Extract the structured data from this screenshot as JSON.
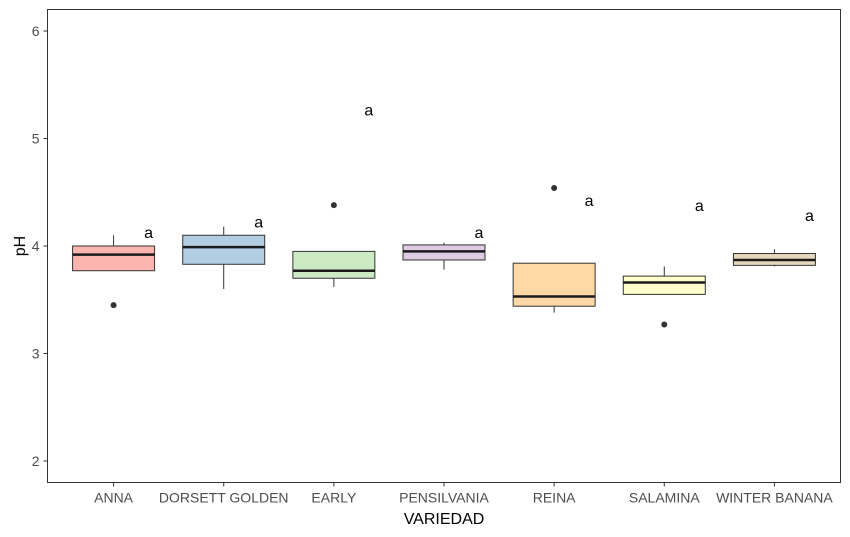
{
  "chart_data": {
    "type": "boxplot",
    "title": "",
    "xlabel": "VARIEDAD",
    "ylabel": "pH",
    "ylim": [
      1.8,
      6.2
    ],
    "yticks": [
      2,
      3,
      4,
      5,
      6
    ],
    "ytick_labels": [
      "2",
      "3",
      "4",
      "5",
      "6"
    ],
    "grid": false,
    "legend": "none",
    "categories": [
      "ANNA",
      "DORSETT GOLDEN",
      "EARLY",
      "PENSILVANIA",
      "REINA",
      "SALAMINA",
      "WINTER BANANA"
    ],
    "colors": [
      "#fbb4ae",
      "#b3cde3",
      "#ccebc5",
      "#decbe4",
      "#fed9a6",
      "#ffffcc",
      "#e5d8bd"
    ],
    "boxes": [
      {
        "min": 3.77,
        "q1": 3.77,
        "median": 3.92,
        "q3": 4.0,
        "max": 4.1,
        "outliers": [
          3.45
        ],
        "label": "a",
        "label_y": 4.13
      },
      {
        "min": 3.6,
        "q1": 3.83,
        "median": 3.99,
        "q3": 4.1,
        "max": 4.18,
        "outliers": [],
        "label": "a",
        "label_y": 4.23
      },
      {
        "min": 3.62,
        "q1": 3.7,
        "median": 3.77,
        "q3": 3.95,
        "max": 3.95,
        "outliers": [
          4.38
        ],
        "label": "a",
        "label_y": 5.27
      },
      {
        "min": 3.78,
        "q1": 3.87,
        "median": 3.95,
        "q3": 4.01,
        "max": 4.03,
        "outliers": [],
        "label": "a",
        "label_y": 4.13
      },
      {
        "min": 3.38,
        "q1": 3.44,
        "median": 3.53,
        "q3": 3.84,
        "max": 3.84,
        "outliers": [
          4.54
        ],
        "label": "a",
        "label_y": 4.43
      },
      {
        "min": 3.55,
        "q1": 3.55,
        "median": 3.66,
        "q3": 3.72,
        "max": 3.81,
        "outliers": [
          3.27
        ],
        "label": "a",
        "label_y": 4.38
      },
      {
        "min": 3.81,
        "q1": 3.82,
        "median": 3.87,
        "q3": 3.93,
        "max": 3.97,
        "outliers": [],
        "label": "a",
        "label_y": 4.29
      }
    ]
  }
}
